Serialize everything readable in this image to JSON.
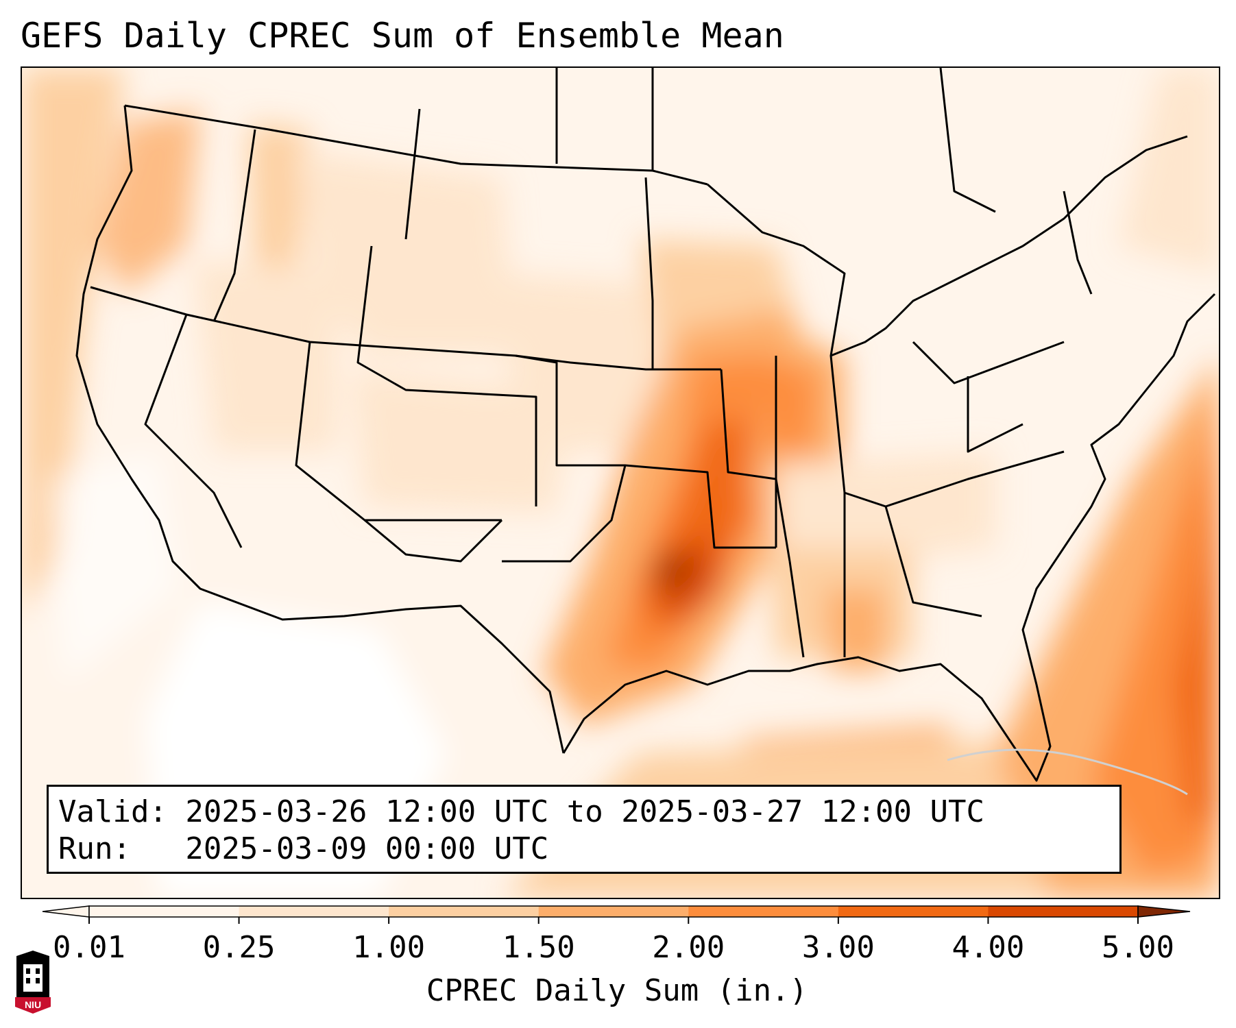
{
  "title": "GEFS Daily CPREC Sum of Ensemble Mean",
  "info": {
    "valid_line": "Valid: 2025-03-26 12:00 UTC to 2025-03-27 12:00 UTC",
    "run_line": "Run:   2025-03-09 00:00 UTC"
  },
  "colorbar": {
    "label": "CPREC Daily Sum (in.)",
    "ticks": [
      "0.01",
      "0.25",
      "1.00",
      "1.50",
      "2.00",
      "3.00",
      "4.00",
      "5.00"
    ],
    "colors": [
      "#fff5eb",
      "#fee6ce",
      "#fdd0a2",
      "#fdae6b",
      "#fd8d3c",
      "#f16913",
      "#d94801",
      "#a63603",
      "#7f2704"
    ]
  },
  "logo": {
    "text": "NIU",
    "colors": {
      "primary": "#c8102e",
      "dark": "#000000",
      "light": "#ffffff"
    }
  }
}
